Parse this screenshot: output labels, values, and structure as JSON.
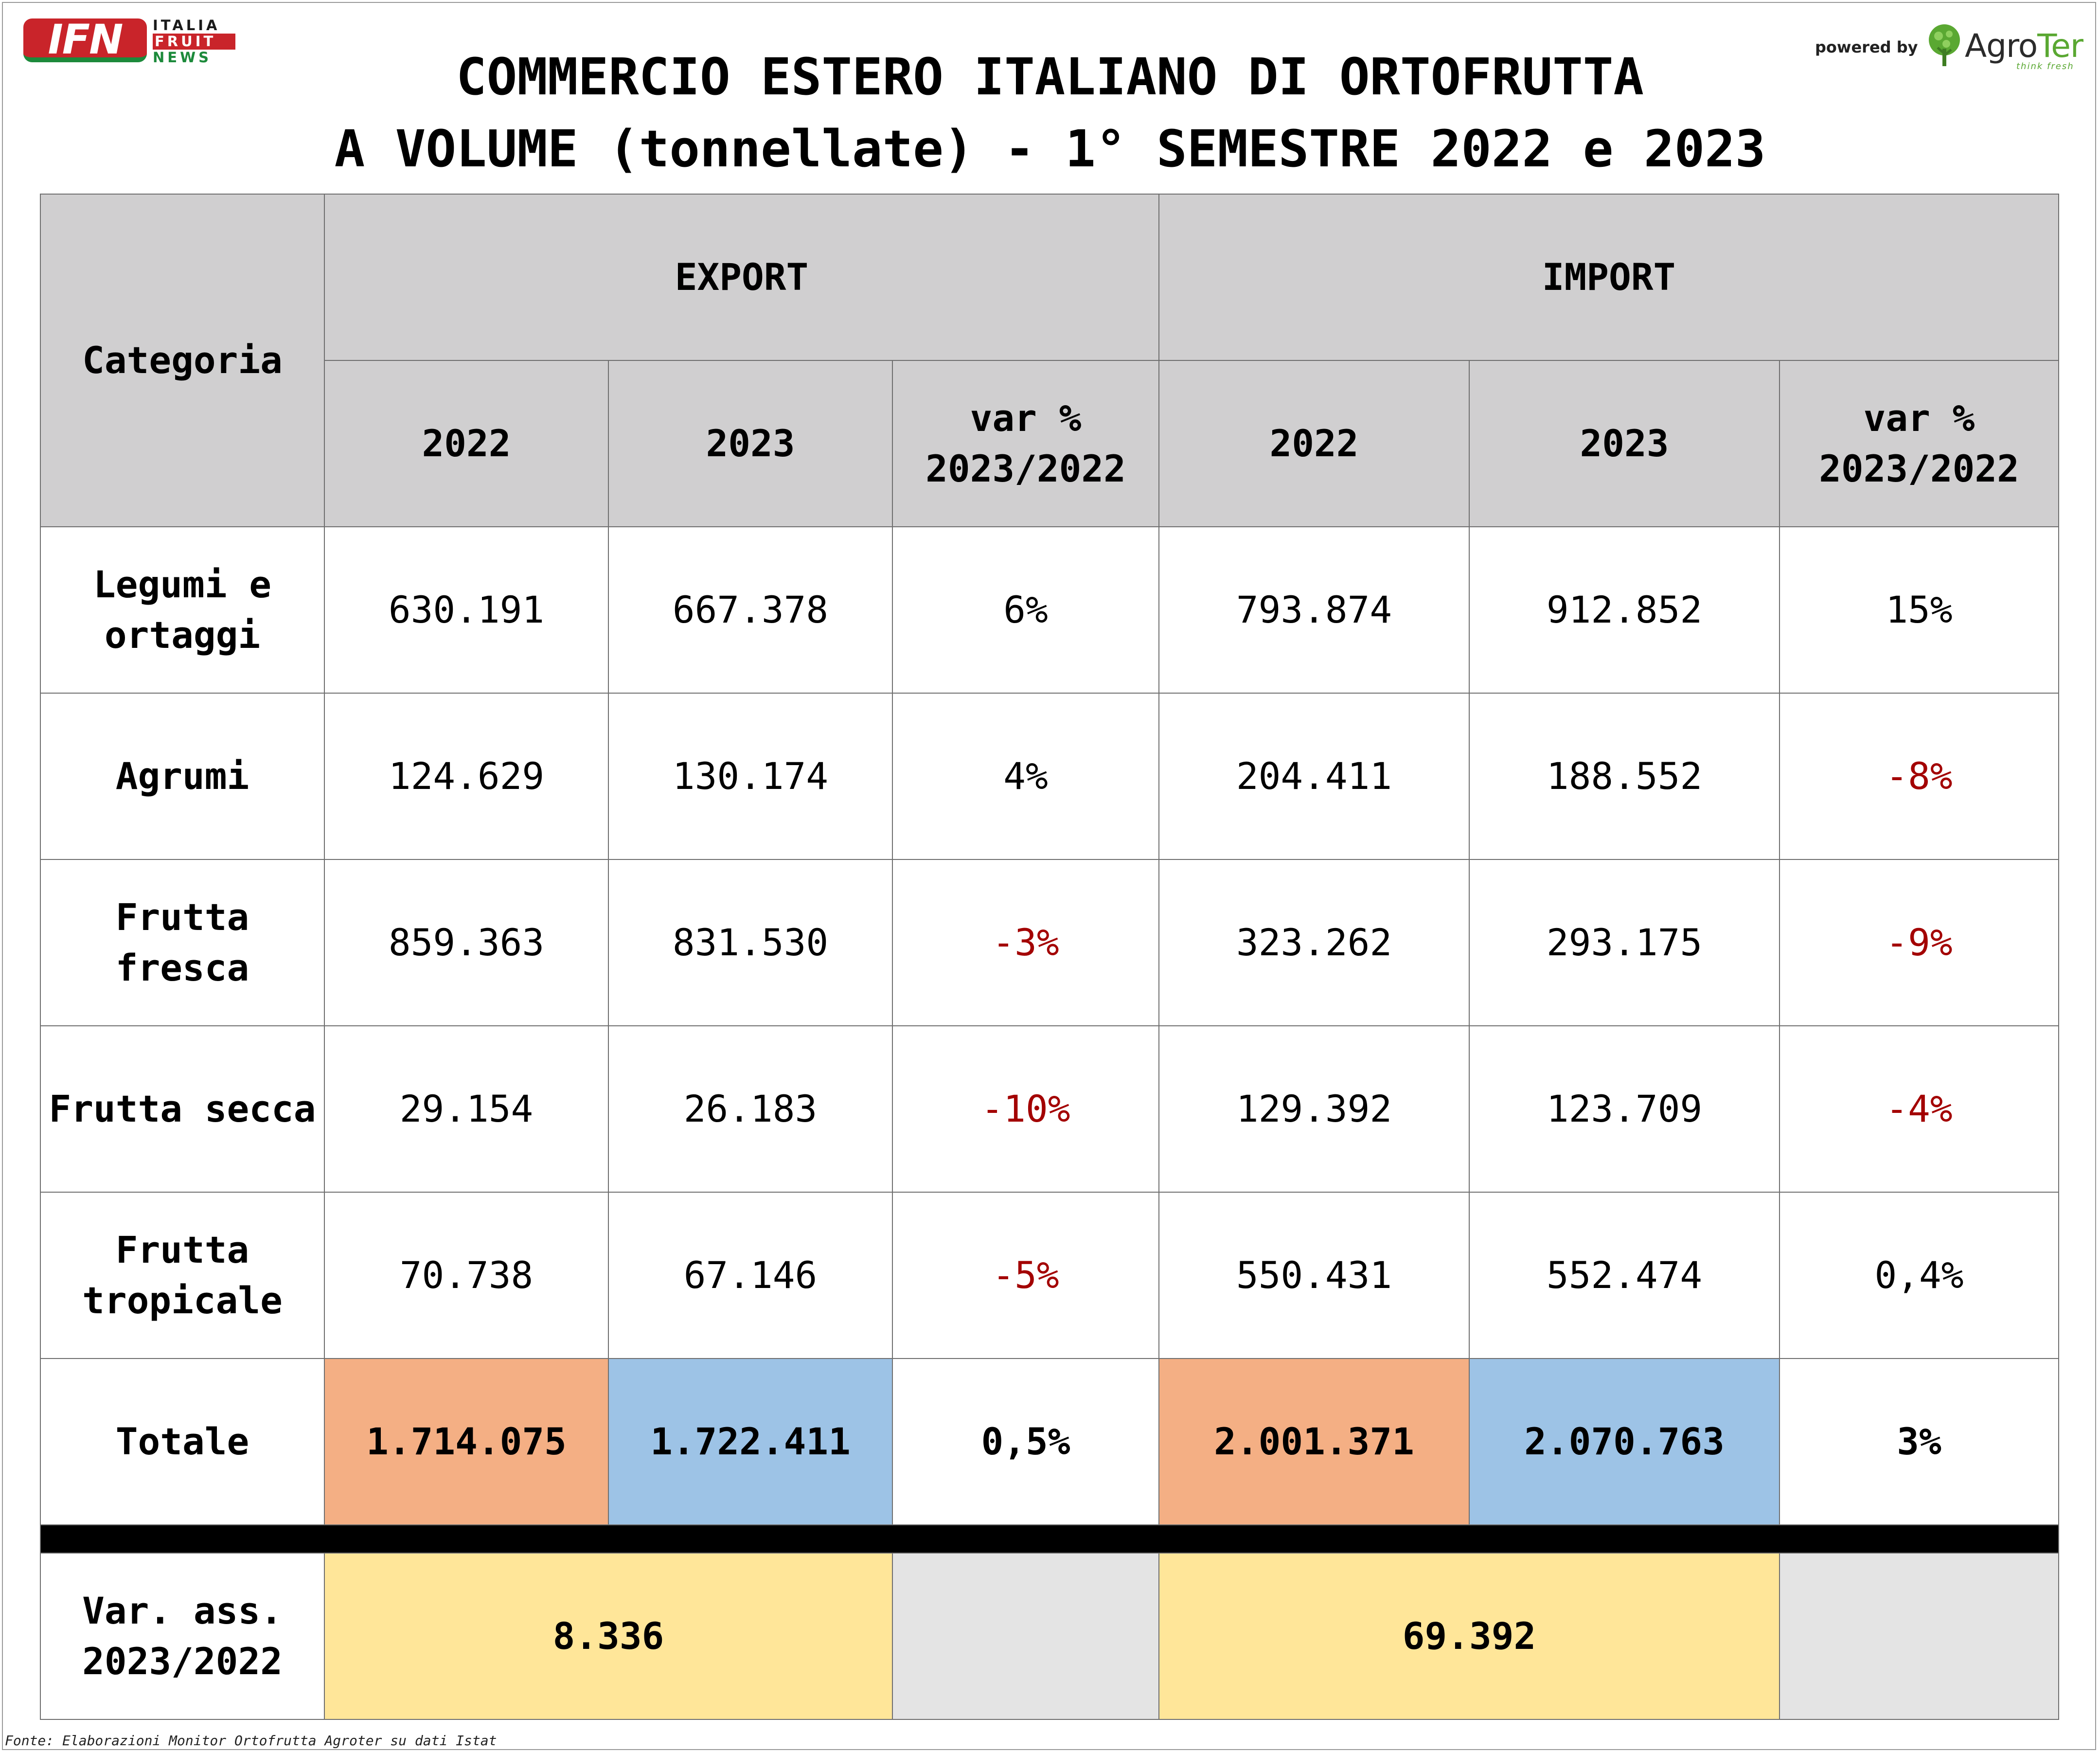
{
  "logos": {
    "ifn": {
      "badge": "IFN",
      "line1": "ITALIA",
      "line2": "FRUIT",
      "line3": "NEWS"
    },
    "powered_by": "powered by",
    "agroter": {
      "name_prefix": "Agro",
      "name_suffix": "Ter",
      "tagline": "think fresh"
    }
  },
  "title": {
    "line1": "COMMERCIO ESTERO ITALIANO DI ORTOFRUTTA",
    "line2": "A VOLUME (tonnellate) - 1° SEMESTRE 2022 e 2023"
  },
  "table": {
    "header": {
      "category": "Categoria",
      "export": "EXPORT",
      "import": "IMPORT",
      "year_2022": "2022",
      "year_2023": "2023",
      "var_line1": "var %",
      "var_line2": "2023/2022"
    },
    "rows": [
      {
        "cat_line1": "Legumi e",
        "cat_line2": "ortaggi",
        "exp_2022": "630.191",
        "exp_2023": "667.378",
        "exp_var": "6%",
        "imp_2022": "793.874",
        "imp_2023": "912.852",
        "imp_var": "15%"
      },
      {
        "cat_line1": "Agrumi",
        "cat_line2": "",
        "exp_2022": "124.629",
        "exp_2023": "130.174",
        "exp_var": "4%",
        "imp_2022": "204.411",
        "imp_2023": "188.552",
        "imp_var": "-8%"
      },
      {
        "cat_line1": "Frutta",
        "cat_line2": "fresca",
        "exp_2022": "859.363",
        "exp_2023": "831.530",
        "exp_var": "-3%",
        "imp_2022": "323.262",
        "imp_2023": "293.175",
        "imp_var": "-9%"
      },
      {
        "cat_line1": "Frutta secca",
        "cat_line2": "",
        "exp_2022": "29.154",
        "exp_2023": "26.183",
        "exp_var": "-10%",
        "imp_2022": "129.392",
        "imp_2023": "123.709",
        "imp_var": "-4%"
      },
      {
        "cat_line1": "Frutta",
        "cat_line2": "tropicale",
        "exp_2022": "70.738",
        "exp_2023": "67.146",
        "exp_var": "-5%",
        "imp_2022": "550.431",
        "imp_2023": "552.474",
        "imp_var": "0,4%"
      }
    ],
    "total": {
      "label": "Totale",
      "exp_2022": "1.714.075",
      "exp_2023": "1.722.411",
      "exp_var": "0,5%",
      "imp_2022": "2.001.371",
      "imp_2023": "2.070.763",
      "imp_var": "3%"
    },
    "abs_var": {
      "label_line1": "Var. ass.",
      "label_line2": "2023/2022",
      "export": "8.336",
      "import": "69.392"
    }
  },
  "colors": {
    "header_gray": "#d0cfd0",
    "negative_red": "#a30000",
    "total_2022_orange": "#f4af84",
    "total_2023_blue": "#9dc3e6",
    "abs_var_yellow": "#ffe699"
  },
  "source": "Fonte: Elaborazioni Monitor Ortofrutta Agroter su dati Istat"
}
